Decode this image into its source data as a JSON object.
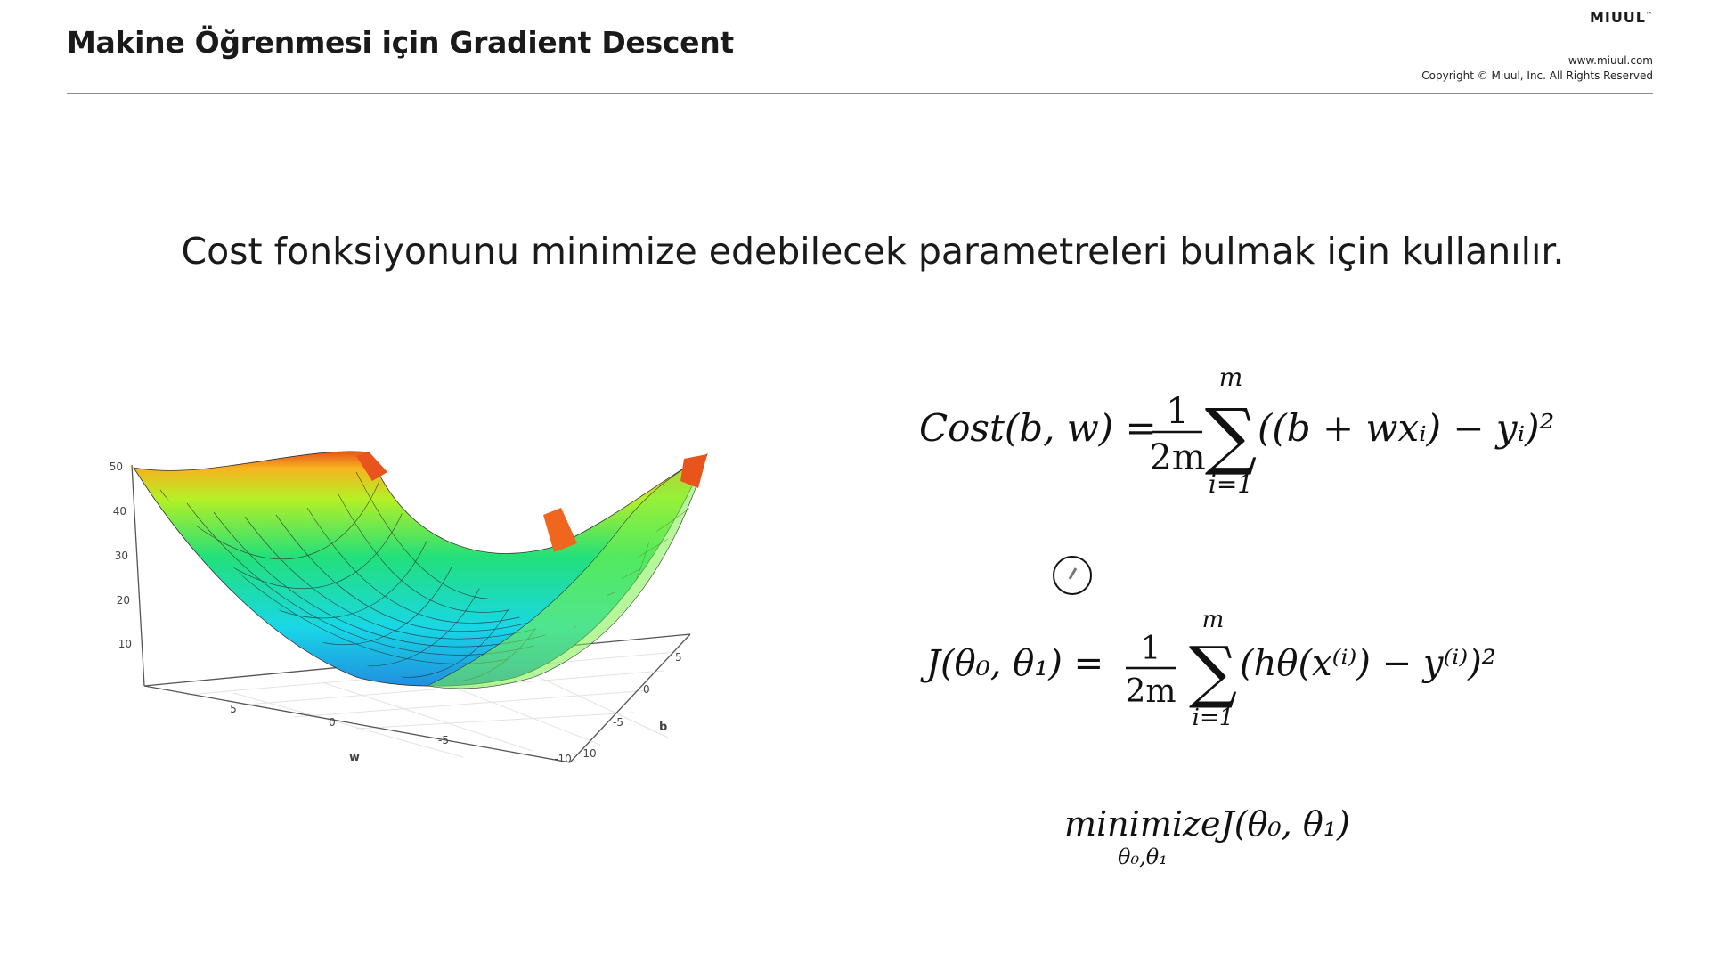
{
  "header": {
    "title": "Makine Öğrenmesi için Gradient Descent",
    "brand": "MIUUL",
    "brand_mark": "™",
    "url": "www.miuul.com",
    "copyright": "Copyright © Miuul, Inc. All Rights Reserved"
  },
  "subtitle": "Cost fonksiyonunu minimize edebilecek parametreleri bulmak için kullanılır.",
  "plot": {
    "axis_labels": {
      "w": "w",
      "b": "b"
    },
    "z_ticks": [
      "50",
      "40",
      "30",
      "20",
      "10"
    ],
    "w_ticks": [
      "5",
      "0",
      "-5",
      "-10"
    ],
    "b_ticks": [
      "5",
      "0",
      "-5",
      "-10"
    ],
    "colors": {
      "low": "#1f8fe0",
      "mid": "#22e07a",
      "high": "#f7e021",
      "top": "#e8541c"
    }
  },
  "equations": {
    "cost": {
      "lhs": "Cost(b, w) =",
      "frac_num": "1",
      "frac_den": "2m",
      "sum": "∑",
      "sum_top": "m",
      "sum_bottom": "i=1",
      "body": "((b + wxᵢ) − yᵢ)²"
    },
    "j": {
      "lhs": "J(θ₀, θ₁) =",
      "frac_num": "1",
      "frac_den": "2m",
      "sum": "∑",
      "sum_top": "m",
      "sum_bottom": "i=1",
      "body": "(hθ(x⁽ⁱ⁾) − y⁽ⁱ⁾)²"
    },
    "min": {
      "text": "minimizeJ(θ₀, θ₁)",
      "sub": "θ₀,θ₁"
    }
  }
}
